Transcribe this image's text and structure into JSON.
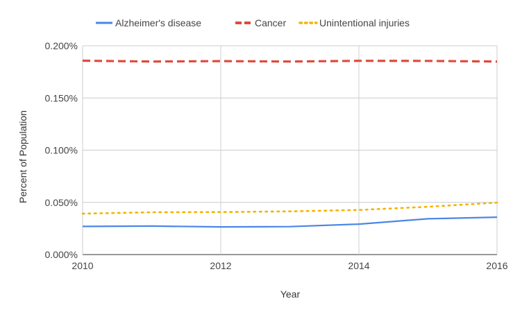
{
  "chart_data": {
    "type": "line",
    "title": "",
    "xlabel": "Year",
    "ylabel": "Percent of Population",
    "xlim": [
      2010,
      2016
    ],
    "ylim": [
      0,
      0.2
    ],
    "x_ticks": [
      2010,
      2012,
      2014,
      2016
    ],
    "x_tick_labels": [
      "2010",
      "2012",
      "2014",
      "2016"
    ],
    "y_ticks": [
      0,
      0.05,
      0.1,
      0.15,
      0.2
    ],
    "y_tick_labels": [
      "0.000%",
      "0.050%",
      "0.100%",
      "0.150%",
      "0.200%"
    ],
    "grid": true,
    "legend_position": "top",
    "x": [
      2010,
      2011,
      2012,
      2013,
      2014,
      2015,
      2016
    ],
    "series": [
      {
        "name": "Alzheimer's disease",
        "color": "#4a86e8",
        "dash": "solid",
        "values": [
          0.027,
          0.0273,
          0.0265,
          0.0268,
          0.0292,
          0.0343,
          0.0358
        ]
      },
      {
        "name": "Cancer",
        "color": "#dd4b3e",
        "dash": "dashed",
        "values": [
          0.1857,
          0.1849,
          0.1853,
          0.1849,
          0.1856,
          0.1855,
          0.1849
        ]
      },
      {
        "name": "Unintentional injuries",
        "color": "#f4b400",
        "dash": "dotted",
        "values": [
          0.0392,
          0.0405,
          0.0407,
          0.0414,
          0.0427,
          0.0458,
          0.0498
        ]
      }
    ]
  }
}
